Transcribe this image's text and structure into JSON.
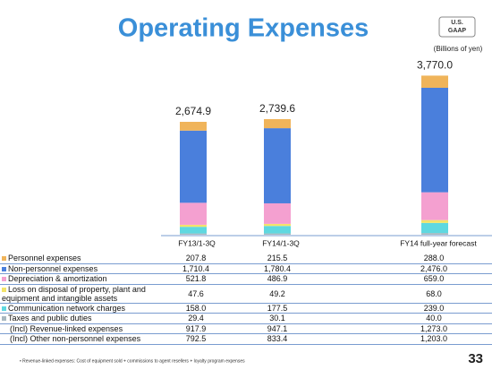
{
  "chart_data": {
    "type": "bar",
    "stacked": true,
    "title": "Operating Expenses",
    "badge": [
      "U.S.",
      "GAAP"
    ],
    "unit_label": "(Billions of yen)",
    "categories": [
      "FY13/1-3Q",
      "FY14/1-3Q",
      "FY14 full-year forecast"
    ],
    "ylim": [
      0,
      3800
    ],
    "totals": [
      2674.9,
      2739.6,
      3770.0
    ],
    "total_labels": [
      "2,674.9",
      "2,739.6",
      "3,770.0"
    ],
    "series": [
      {
        "name": "Personnel expenses",
        "color": "#f0b45a",
        "values": [
          207.8,
          215.5,
          288.0
        ],
        "value_labels": [
          "207.8",
          "215.5",
          "288.0"
        ]
      },
      {
        "name": "Non-personnel expenses",
        "color": "#4a7fdc",
        "values": [
          1710.4,
          1780.4,
          2476.0
        ],
        "value_labels": [
          "1,710.4",
          "1,780.4",
          "2,476.0"
        ]
      },
      {
        "name": "Depreciation & amortization",
        "color": "#f4a0d0",
        "values": [
          521.8,
          486.9,
          659.0
        ],
        "value_labels": [
          "521.8",
          "486.9",
          "659.0"
        ]
      },
      {
        "name": "Loss on disposal of property, plant and equipment and intangible assets",
        "color": "#f3e36a",
        "values": [
          47.6,
          49.2,
          68.0
        ],
        "value_labels": [
          "47.6",
          "49.2",
          "68.0"
        ]
      },
      {
        "name": "Communication network charges",
        "color": "#5fd8e0",
        "values": [
          158.0,
          177.5,
          239.0
        ],
        "value_labels": [
          "158.0",
          "177.5",
          "239.0"
        ]
      },
      {
        "name": "Taxes and public duties",
        "color": "#a8b8c0",
        "values": [
          29.4,
          30.1,
          40.0
        ],
        "value_labels": [
          "29.4",
          "30.1",
          "40.0"
        ]
      }
    ],
    "extra_rows": [
      {
        "name": "(Incl) Revenue-linked expenses",
        "cells": [
          "917.9",
          "947.1",
          "1,273.0"
        ]
      },
      {
        "name": "(Incl) Other non-personnel expenses",
        "cells": [
          "792.5",
          "833.4",
          "1,203.0"
        ]
      }
    ],
    "footnote": "• Revenue-linked expenses: Cost of equipment sold + commissions to agent resellers + loyalty program expenses",
    "page_number": "33"
  }
}
